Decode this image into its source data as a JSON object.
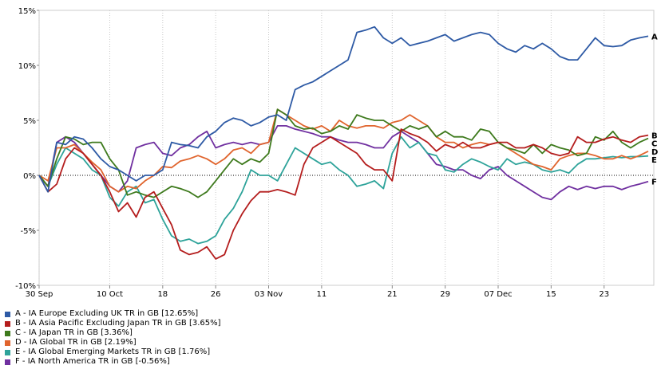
{
  "chart_data": {
    "type": "line",
    "ylim": [
      -10,
      15
    ],
    "y_ticks": [
      "-10%",
      "-5%",
      "0%",
      "5%",
      "10%",
      "15%"
    ],
    "y_tick_values": [
      -10,
      -5,
      0,
      5,
      10,
      15
    ],
    "x_tick_labels": [
      "30 Sep",
      "10 Oct",
      "18",
      "26",
      "03 Nov",
      "11",
      "21",
      "29",
      "07 Dec",
      "15",
      "23"
    ],
    "x_tick_index": [
      0,
      8,
      14,
      20,
      26,
      32,
      40,
      46,
      52,
      58,
      64
    ],
    "n_points": 70,
    "grid": "vertical dotted at ticks, dotted zero line",
    "legend_position": "bottom",
    "series": [
      {
        "name": "A - IA Europe Excluding UK TR in GB [12.65%]",
        "end_label": "A",
        "color": "#2e5aa5",
        "values": [
          0.0,
          -1.5,
          3.0,
          2.8,
          3.5,
          3.3,
          2.5,
          1.5,
          0.8,
          0.5,
          0.0,
          -0.5,
          0.0,
          0.0,
          0.5,
          3.0,
          2.8,
          2.7,
          2.5,
          3.5,
          4.0,
          4.8,
          5.2,
          5.0,
          4.5,
          4.8,
          5.3,
          5.5,
          5.0,
          7.8,
          8.2,
          8.5,
          9.0,
          9.5,
          10.0,
          10.5,
          13.0,
          13.2,
          13.5,
          12.5,
          12.0,
          12.5,
          11.8,
          12.0,
          12.2,
          12.5,
          12.8,
          12.2,
          12.5,
          12.8,
          13.0,
          12.8,
          12.0,
          11.5,
          11.2,
          11.8,
          11.5,
          12.0,
          11.5,
          10.8,
          10.5,
          10.5,
          11.5,
          12.5,
          11.8,
          11.7,
          11.8,
          12.3,
          12.5,
          12.65
        ]
      },
      {
        "name": "B - IA Asia Pacific Excluding Japan TR in GB [3.65%]",
        "end_label": "B",
        "color": "#b41d1d",
        "values": [
          0.0,
          -1.5,
          -0.8,
          1.5,
          2.5,
          2.0,
          1.0,
          0.0,
          -1.5,
          -3.3,
          -2.5,
          -3.8,
          -2.0,
          -1.5,
          -3.0,
          -4.5,
          -6.8,
          -7.2,
          -7.0,
          -6.5,
          -7.6,
          -7.2,
          -5.0,
          -3.5,
          -2.3,
          -1.5,
          -1.5,
          -1.3,
          -1.5,
          -1.8,
          1.0,
          2.5,
          3.0,
          3.5,
          3.0,
          2.5,
          2.0,
          1.0,
          0.5,
          0.5,
          -0.5,
          4.2,
          3.8,
          3.5,
          3.0,
          2.2,
          2.8,
          2.5,
          3.0,
          2.5,
          2.5,
          2.8,
          3.0,
          3.0,
          2.5,
          2.5,
          2.8,
          2.5,
          2.0,
          1.8,
          2.0,
          3.5,
          3.0,
          3.0,
          3.3,
          3.5,
          3.2,
          3.0,
          3.5,
          3.65
        ]
      },
      {
        "name": "C - IA Japan TR in GB [3.36%]",
        "end_label": "C",
        "color": "#3e7a1d",
        "values": [
          0.0,
          -1.0,
          1.5,
          3.5,
          3.3,
          2.8,
          3.0,
          3.0,
          1.5,
          0.5,
          -1.8,
          -1.5,
          -1.8,
          -2.0,
          -1.5,
          -1.0,
          -1.2,
          -1.5,
          -2.0,
          -1.5,
          -0.5,
          0.5,
          1.5,
          1.0,
          1.5,
          1.2,
          2.0,
          6.0,
          5.5,
          4.5,
          4.2,
          4.3,
          3.8,
          4.0,
          4.5,
          4.2,
          5.5,
          5.2,
          5.0,
          5.0,
          4.5,
          4.0,
          4.5,
          4.2,
          4.5,
          3.5,
          4.0,
          3.5,
          3.5,
          3.2,
          4.2,
          4.0,
          3.0,
          2.5,
          2.3,
          2.0,
          2.8,
          2.0,
          2.8,
          2.5,
          2.3,
          1.8,
          2.0,
          3.5,
          3.2,
          4.0,
          3.0,
          2.5,
          3.0,
          3.36
        ]
      },
      {
        "name": "D - IA Global TR in GB [2.19%]",
        "end_label": "D",
        "color": "#e0642d",
        "values": [
          0.0,
          -0.5,
          2.5,
          2.5,
          2.8,
          2.0,
          1.2,
          0.5,
          -1.0,
          -1.5,
          -1.0,
          -1.2,
          -0.5,
          0.0,
          0.8,
          0.7,
          1.3,
          1.5,
          1.8,
          1.5,
          1.0,
          1.5,
          2.3,
          2.5,
          2.0,
          2.8,
          3.0,
          6.0,
          5.5,
          5.0,
          4.5,
          4.2,
          4.5,
          4.0,
          5.0,
          4.5,
          4.3,
          4.5,
          4.5,
          4.3,
          4.8,
          5.0,
          5.5,
          5.0,
          4.5,
          3.5,
          3.0,
          3.0,
          2.5,
          2.8,
          3.0,
          2.8,
          3.0,
          2.5,
          2.0,
          1.5,
          1.0,
          0.8,
          0.5,
          1.5,
          1.8,
          2.0,
          2.0,
          1.8,
          1.5,
          1.5,
          1.8,
          1.5,
          1.8,
          2.19
        ]
      },
      {
        "name": "E - IA Global Emerging Markets TR in GB [1.76%]",
        "end_label": "E",
        "color": "#2ea39a",
        "values": [
          0.0,
          -1.0,
          1.0,
          2.5,
          2.0,
          1.5,
          0.5,
          0.0,
          -2.0,
          -2.8,
          -1.5,
          -1.0,
          -2.5,
          -2.2,
          -4.0,
          -5.5,
          -6.0,
          -5.8,
          -6.2,
          -6.0,
          -5.5,
          -4.0,
          -3.0,
          -1.5,
          0.5,
          0.0,
          0.0,
          -0.5,
          1.0,
          2.5,
          2.0,
          1.5,
          1.0,
          1.2,
          0.5,
          0.0,
          -1.0,
          -0.8,
          -0.5,
          -1.2,
          2.0,
          3.5,
          2.5,
          3.0,
          2.0,
          1.8,
          0.5,
          0.3,
          1.0,
          1.5,
          1.2,
          0.8,
          0.5,
          1.5,
          1.0,
          1.2,
          1.0,
          0.5,
          0.3,
          0.5,
          0.2,
          1.0,
          1.5,
          1.5,
          1.6,
          1.7,
          1.6,
          1.7,
          1.7,
          1.76
        ]
      },
      {
        "name": "F - IA North America TR in GB [-0.56%]",
        "end_label": "F",
        "color": "#7030a0",
        "values": [
          0.0,
          -1.0,
          3.0,
          3.5,
          3.0,
          2.0,
          1.0,
          0.0,
          -1.0,
          -1.5,
          -0.5,
          2.5,
          2.8,
          3.0,
          2.0,
          1.8,
          2.5,
          2.8,
          3.5,
          4.0,
          2.5,
          2.8,
          3.0,
          2.8,
          3.0,
          2.8,
          3.0,
          4.5,
          4.5,
          4.2,
          4.0,
          3.8,
          3.5,
          3.5,
          3.2,
          3.0,
          3.0,
          2.8,
          2.5,
          2.5,
          3.5,
          4.0,
          3.5,
          3.0,
          2.0,
          1.0,
          0.8,
          0.5,
          0.5,
          0.0,
          -0.3,
          0.5,
          0.8,
          0.0,
          -0.5,
          -1.0,
          -1.5,
          -2.0,
          -2.2,
          -1.5,
          -1.0,
          -1.3,
          -1.0,
          -1.2,
          -1.0,
          -1.0,
          -1.3,
          -1.0,
          -0.8,
          -0.56
        ]
      }
    ]
  }
}
